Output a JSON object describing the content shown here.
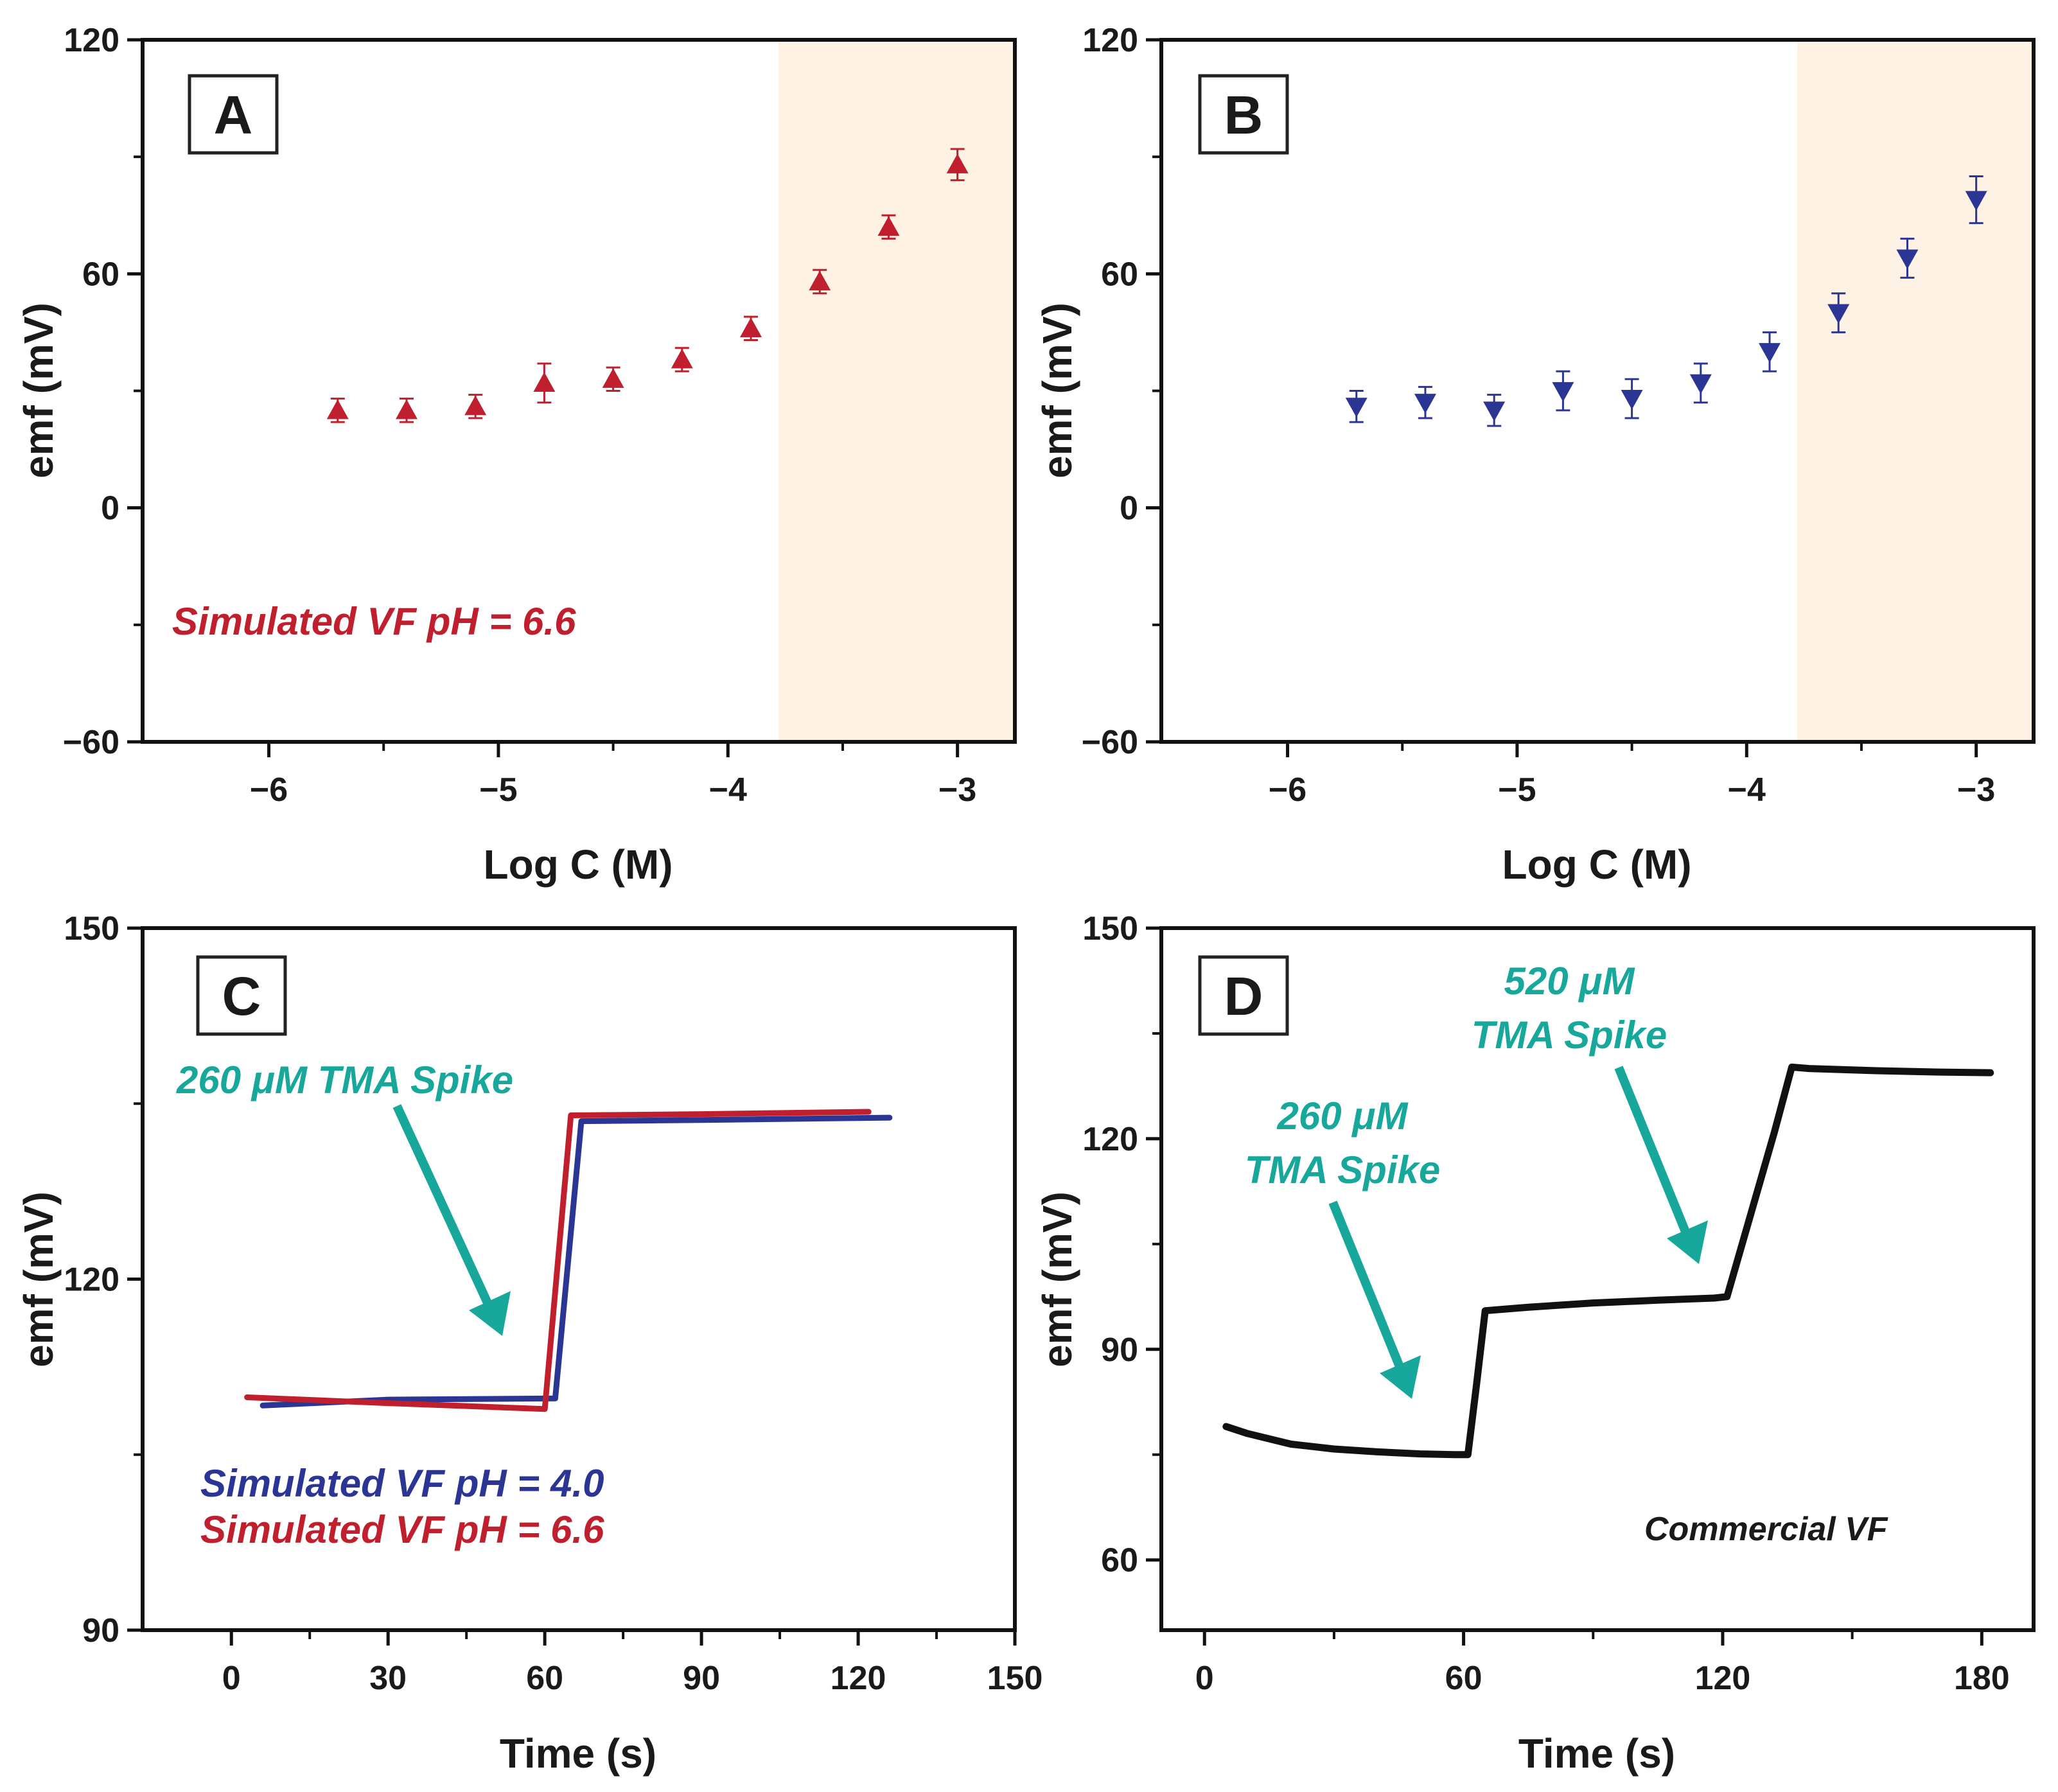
{
  "colors": {
    "red": "#c0202e",
    "blue": "#2b3694",
    "black": "#111111",
    "teal": "#17a89b",
    "shade": "#fdf2e4"
  },
  "chart_data": [
    {
      "panel": "A",
      "type": "scatter",
      "xlabel": "Log C (M)",
      "ylabel": "emf (mV)",
      "xlim": [
        -6.55,
        -2.75
      ],
      "ylim": [
        -60,
        120
      ],
      "xticks": [
        "−6",
        "−5",
        "−4",
        "−3"
      ],
      "yticks": [
        "−60",
        "0",
        "60",
        "120"
      ],
      "shaded_region": [
        -3.78,
        -2.75
      ],
      "marker": "triangle-up",
      "color": "red",
      "series": [
        {
          "name": "emf",
          "x": [
            -5.7,
            -5.4,
            -5.1,
            -4.8,
            -4.5,
            -4.2,
            -3.9,
            -3.6,
            -3.3,
            -3.0
          ],
          "y": [
            25,
            25,
            26,
            32,
            33,
            38,
            46,
            58,
            72,
            88
          ],
          "err": [
            3,
            3,
            3,
            5,
            3,
            3,
            3,
            3,
            3,
            4
          ]
        }
      ],
      "annotation": "Simulated VF pH = 6.6"
    },
    {
      "panel": "B",
      "type": "scatter",
      "xlabel": "Log C (M)",
      "ylabel": "emf (mV)",
      "xlim": [
        -6.55,
        -2.75
      ],
      "ylim": [
        -60,
        120
      ],
      "xticks": [
        "−6",
        "−5",
        "−4",
        "−3"
      ],
      "yticks": [
        "−60",
        "0",
        "60",
        "120"
      ],
      "shaded_region": [
        -3.78,
        -2.75
      ],
      "marker": "triangle-down",
      "color": "blue",
      "series": [
        {
          "name": "emf",
          "x": [
            -5.7,
            -5.4,
            -5.1,
            -4.8,
            -4.5,
            -4.2,
            -3.9,
            -3.6,
            -3.3,
            -3.0
          ],
          "y": [
            26,
            27,
            25,
            30,
            28,
            32,
            40,
            50,
            64,
            79
          ],
          "err": [
            4,
            4,
            4,
            5,
            5,
            5,
            5,
            5,
            5,
            6
          ]
        }
      ]
    },
    {
      "panel": "C",
      "type": "line",
      "xlabel": "Time (s)",
      "ylabel": "emf (mV)",
      "xlim": [
        -17,
        150
      ],
      "ylim": [
        90,
        150
      ],
      "xticks": [
        "0",
        "30",
        "60",
        "90",
        "120",
        "150"
      ],
      "yticks": [
        "90",
        "120",
        "150"
      ],
      "series": [
        {
          "name": "Simulated VF pH = 4.0",
          "color": "blue",
          "x": [
            6,
            30,
            62,
            67,
            90,
            126
          ],
          "y": [
            109.2,
            109.7,
            109.8,
            133.5,
            133.6,
            133.8
          ]
        },
        {
          "name": "Simulated VF pH = 6.6",
          "color": "red",
          "x": [
            3,
            30,
            60,
            65,
            90,
            122
          ],
          "y": [
            109.9,
            109.4,
            108.9,
            134.0,
            134.1,
            134.3
          ]
        }
      ],
      "annotation": "260 μM TMA Spike",
      "legend": [
        "Simulated VF pH = 4.0",
        "Simulated VF pH = 6.6"
      ]
    },
    {
      "panel": "D",
      "type": "line",
      "xlabel": "Time (s)",
      "ylabel": "emf (mV)",
      "xlim": [
        -10,
        192
      ],
      "ylim": [
        50,
        150
      ],
      "xticks": [
        "0",
        "60",
        "120",
        "180"
      ],
      "yticks": [
        "60",
        "90",
        "120",
        "150"
      ],
      "series": [
        {
          "name": "Commercial VF",
          "color": "black",
          "x": [
            5,
            10,
            20,
            30,
            40,
            50,
            58,
            61,
            63,
            65,
            75,
            90,
            105,
            118,
            121,
            132,
            136,
            140,
            155,
            170,
            182
          ],
          "y": [
            79.0,
            78.0,
            76.5,
            75.8,
            75.4,
            75.1,
            75.0,
            75.0,
            85.0,
            95.5,
            96.0,
            96.6,
            97.0,
            97.3,
            97.5,
            121.0,
            130.2,
            130.0,
            129.7,
            129.5,
            129.4
          ]
        }
      ],
      "annotations": [
        "260 μM",
        "TMA Spike",
        "520 μM",
        "TMA Spike",
        "Commercial VF"
      ]
    }
  ]
}
